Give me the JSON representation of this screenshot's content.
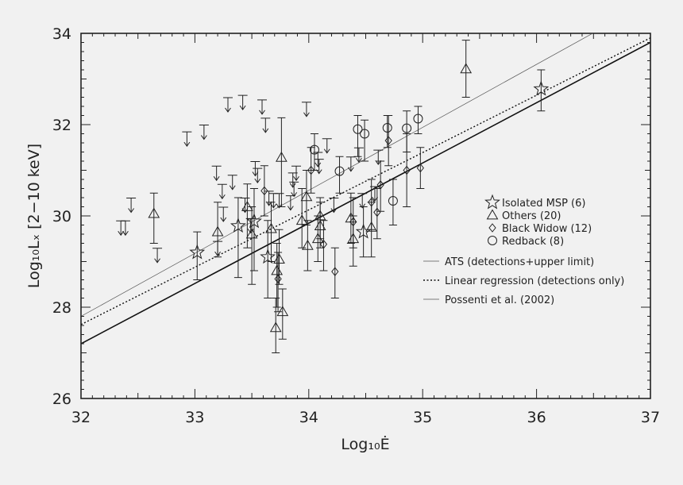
{
  "chart_data": {
    "type": "scatter",
    "xlabel": "Log₁₀Ė",
    "ylabel": "Log₁₀Lₓ [2−10 keV]",
    "xlim": [
      32,
      37
    ],
    "ylim": [
      26,
      34
    ],
    "xticks": [
      "32",
      "33",
      "34",
      "35",
      "36",
      "37"
    ],
    "yticks": [
      "26",
      "28",
      "30",
      "32",
      "34"
    ],
    "series": [
      {
        "name": "Isolated MSP (6)",
        "marker": "star",
        "points": [
          {
            "x": 33.02,
            "y": 29.2,
            "lo": 28.6,
            "hi": 29.65
          },
          {
            "x": 33.38,
            "y": 29.78,
            "lo": 28.65,
            "hi": 30.4
          },
          {
            "x": 33.52,
            "y": 29.88,
            "lo": 28.8,
            "hi": 30.6
          },
          {
            "x": 33.64,
            "y": 29.1,
            "lo": 28.2,
            "hi": 29.9
          },
          {
            "x": 34.48,
            "y": 29.65,
            "lo": 29.1,
            "hi": 30.2
          },
          {
            "x": 36.04,
            "y": 32.78,
            "lo": 32.3,
            "hi": 33.2
          }
        ]
      },
      {
        "name": "Others (20)",
        "marker": "triangle",
        "points": [
          {
            "x": 32.64,
            "y": 30.05,
            "lo": 29.4,
            "hi": 30.5
          },
          {
            "x": 33.2,
            "y": 29.65,
            "lo": 29.1,
            "hi": 30.3
          },
          {
            "x": 33.46,
            "y": 30.2,
            "lo": 29.3,
            "hi": 30.7
          },
          {
            "x": 33.5,
            "y": 29.6,
            "lo": 28.5,
            "hi": 30.2
          },
          {
            "x": 33.67,
            "y": 29.72,
            "lo": 29.0,
            "hi": 30.3
          },
          {
            "x": 33.71,
            "y": 27.55,
            "lo": 27.0,
            "hi": 28.2
          },
          {
            "x": 33.72,
            "y": 28.8,
            "lo": 28.0,
            "hi": 29.4
          },
          {
            "x": 33.74,
            "y": 29.05,
            "lo": 28.5,
            "hi": 29.7
          },
          {
            "x": 33.76,
            "y": 31.28,
            "lo": 30.2,
            "hi": 32.15
          },
          {
            "x": 33.77,
            "y": 27.9,
            "lo": 27.3,
            "hi": 28.4
          },
          {
            "x": 33.94,
            "y": 29.9,
            "lo": 29.3,
            "hi": 30.6
          },
          {
            "x": 33.98,
            "y": 30.42,
            "lo": 29.8,
            "hi": 31.0
          },
          {
            "x": 33.99,
            "y": 29.35,
            "lo": 28.8,
            "hi": 29.9
          },
          {
            "x": 34.08,
            "y": 29.5,
            "lo": 29.0,
            "hi": 30.0
          },
          {
            "x": 34.1,
            "y": 29.78,
            "lo": 29.3,
            "hi": 30.3
          },
          {
            "x": 34.1,
            "y": 30.0,
            "lo": 29.5,
            "hi": 30.4
          },
          {
            "x": 34.37,
            "y": 29.95,
            "lo": 29.4,
            "hi": 30.5
          },
          {
            "x": 34.39,
            "y": 29.5,
            "lo": 28.9,
            "hi": 30.0
          },
          {
            "x": 34.55,
            "y": 29.75,
            "lo": 29.1,
            "hi": 30.3
          },
          {
            "x": 35.38,
            "y": 33.22,
            "lo": 32.6,
            "hi": 33.85
          }
        ]
      },
      {
        "name": "Black Widow (12)",
        "marker": "diamond",
        "points": [
          {
            "x": 33.61,
            "y": 30.55,
            "lo": 30.0,
            "hi": 31.1
          },
          {
            "x": 33.73,
            "y": 28.62,
            "lo": 27.9,
            "hi": 29.2
          },
          {
            "x": 34.02,
            "y": 31.0,
            "lo": 30.5,
            "hi": 31.5
          },
          {
            "x": 34.13,
            "y": 29.38,
            "lo": 28.8,
            "hi": 29.9
          },
          {
            "x": 34.23,
            "y": 28.78,
            "lo": 28.2,
            "hi": 29.3
          },
          {
            "x": 34.39,
            "y": 29.87,
            "lo": 29.3,
            "hi": 30.4
          },
          {
            "x": 34.55,
            "y": 30.3,
            "lo": 29.7,
            "hi": 30.8
          },
          {
            "x": 34.6,
            "y": 30.08,
            "lo": 29.5,
            "hi": 30.6
          },
          {
            "x": 34.63,
            "y": 30.68,
            "lo": 30.1,
            "hi": 31.2
          },
          {
            "x": 34.7,
            "y": 31.65,
            "lo": 31.1,
            "hi": 32.2
          },
          {
            "x": 34.86,
            "y": 31.0,
            "lo": 30.2,
            "hi": 31.8
          },
          {
            "x": 34.98,
            "y": 31.05,
            "lo": 30.6,
            "hi": 31.5
          }
        ]
      },
      {
        "name": "Redback (8)",
        "marker": "circle",
        "points": [
          {
            "x": 34.05,
            "y": 31.45,
            "lo": 31.0,
            "hi": 31.8
          },
          {
            "x": 34.27,
            "y": 30.98,
            "lo": 30.5,
            "hi": 31.3
          },
          {
            "x": 34.43,
            "y": 31.9,
            "lo": 31.3,
            "hi": 32.2
          },
          {
            "x": 34.49,
            "y": 31.8,
            "lo": 31.2,
            "hi": 32.1
          },
          {
            "x": 34.69,
            "y": 31.93,
            "lo": 31.5,
            "hi": 32.2
          },
          {
            "x": 34.74,
            "y": 30.33,
            "lo": 29.8,
            "hi": 30.8
          },
          {
            "x": 34.86,
            "y": 31.92,
            "lo": 31.4,
            "hi": 32.3
          },
          {
            "x": 34.96,
            "y": 32.13,
            "lo": 31.8,
            "hi": 32.4
          }
        ]
      }
    ],
    "upper_limits": [
      {
        "x": 32.35,
        "y": 29.7
      },
      {
        "x": 32.39,
        "y": 29.7
      },
      {
        "x": 32.44,
        "y": 30.2
      },
      {
        "x": 32.67,
        "y": 29.1
      },
      {
        "x": 32.93,
        "y": 31.65
      },
      {
        "x": 33.08,
        "y": 31.8
      },
      {
        "x": 33.19,
        "y": 30.9
      },
      {
        "x": 33.2,
        "y": 29.25
      },
      {
        "x": 33.24,
        "y": 30.5
      },
      {
        "x": 33.25,
        "y": 30.0
      },
      {
        "x": 33.29,
        "y": 32.4
      },
      {
        "x": 33.33,
        "y": 30.7
      },
      {
        "x": 33.42,
        "y": 32.45
      },
      {
        "x": 33.44,
        "y": 30.2
      },
      {
        "x": 33.49,
        "y": 29.75
      },
      {
        "x": 33.53,
        "y": 31.0
      },
      {
        "x": 33.55,
        "y": 30.85
      },
      {
        "x": 33.59,
        "y": 32.35
      },
      {
        "x": 33.62,
        "y": 31.95
      },
      {
        "x": 33.65,
        "y": 30.35
      },
      {
        "x": 33.69,
        "y": 30.3
      },
      {
        "x": 33.74,
        "y": 30.3
      },
      {
        "x": 33.84,
        "y": 30.25
      },
      {
        "x": 33.86,
        "y": 30.75
      },
      {
        "x": 33.87,
        "y": 30.55
      },
      {
        "x": 33.89,
        "y": 30.9
      },
      {
        "x": 33.98,
        "y": 32.3
      },
      {
        "x": 34.08,
        "y": 31.2
      },
      {
        "x": 34.09,
        "y": 31.05
      },
      {
        "x": 34.16,
        "y": 31.5
      },
      {
        "x": 34.22,
        "y": 30.2
      },
      {
        "x": 34.37,
        "y": 31.1
      },
      {
        "x": 34.44,
        "y": 31.3
      },
      {
        "x": 34.47,
        "y": 30.3
      },
      {
        "x": 34.58,
        "y": 30.45
      },
      {
        "x": 34.61,
        "y": 31.25
      }
    ],
    "lines": [
      {
        "name": "ATS (detections+upper limit)",
        "style": "solid",
        "width": 0.7,
        "color": "#555555",
        "x": [
          32,
          37
        ],
        "y": [
          27.8,
          34.7
        ]
      },
      {
        "name": "Linear regression (detections only)",
        "style": "dotted",
        "width": 1.4,
        "color": "#111111",
        "x": [
          32,
          37
        ],
        "y": [
          27.62,
          33.9
        ]
      },
      {
        "name": "Possenti et al. (2002)",
        "style": "solid",
        "width": 1.6,
        "color": "#111111",
        "x": [
          32,
          37
        ],
        "y": [
          27.2,
          33.8
        ]
      }
    ],
    "legend": {
      "placement": "right",
      "markers": [
        {
          "label": "Isolated MSP (6)",
          "marker": "star"
        },
        {
          "label": "Others (20)",
          "marker": "triangle"
        },
        {
          "label": "Black Widow (12)",
          "marker": "diamond"
        },
        {
          "label": "Redback (8)",
          "marker": "circle"
        }
      ],
      "lines": [
        {
          "label": "ATS (detections+upper limit)",
          "style": "solid-thin"
        },
        {
          "label": "Linear regression (detections only)",
          "style": "dotted"
        },
        {
          "label": "Possenti et al. (2002)",
          "style": "solid-thin"
        }
      ]
    },
    "grid": false
  }
}
